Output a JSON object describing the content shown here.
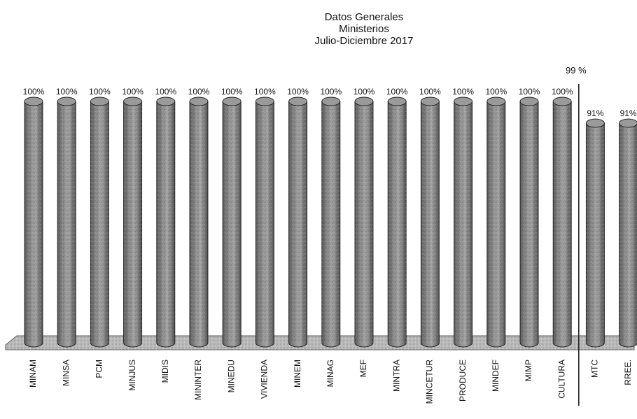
{
  "chart_data": {
    "type": "bar",
    "title": "Datos Generales",
    "subtitle": "Ministerios",
    "period": "Julio-Diciembre 2017",
    "overall_label": "99 %",
    "categories": [
      "MINAM",
      "MINSA",
      "PCM",
      "MINJUS",
      "MIDIS",
      "MININTER",
      "MINEDU",
      "VIVIENDA",
      "MINEM",
      "MINAG",
      "MEF",
      "MINTRA",
      "MINCETUR",
      "PRODUCE",
      "MINDEF",
      "MIMP",
      "CULTURA",
      "MTC",
      "RREE."
    ],
    "values": [
      100,
      100,
      100,
      100,
      100,
      100,
      100,
      100,
      100,
      100,
      100,
      100,
      100,
      100,
      100,
      100,
      100,
      91,
      91
    ],
    "data_labels": [
      "100%",
      "100%",
      "100%",
      "100%",
      "100%",
      "100%",
      "100%",
      "100%",
      "100%",
      "100%",
      "100%",
      "100%",
      "100%",
      "100%",
      "100%",
      "100%",
      "100%",
      "91%",
      "91%"
    ],
    "ylim": [
      0,
      100
    ],
    "bar_style": "3d-cylinder",
    "bar_color": "#8f8f8f",
    "floor_color": "#b9b9b9",
    "divider_after_index": 16,
    "grid": false
  }
}
